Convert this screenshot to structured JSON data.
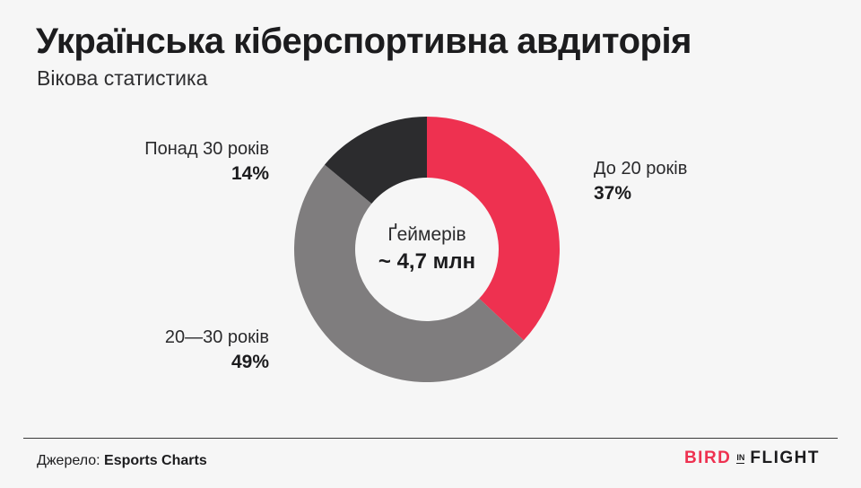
{
  "chart_data": {
    "type": "donut",
    "title": "Українська кіберспортивна авдиторія",
    "subtitle": "Вікова статистика",
    "center": {
      "label": "Ґеймерів",
      "value": "~ 4,7 млн"
    },
    "slices": [
      {
        "name": "До 20 років",
        "value": 37,
        "display": "37%",
        "color": "#ee3150"
      },
      {
        "name": "20—30 років",
        "value": 49,
        "display": "49%",
        "color": "#7f7d7e"
      },
      {
        "name": "Понад 30 років",
        "value": 14,
        "display": "14%",
        "color": "#2c2c2e"
      }
    ]
  },
  "source": {
    "prefix": "Джерело:",
    "name": "Esports Charts"
  },
  "brand": {
    "part1": "BIRD",
    "part2": "IN",
    "part3": "FLIGHT"
  }
}
